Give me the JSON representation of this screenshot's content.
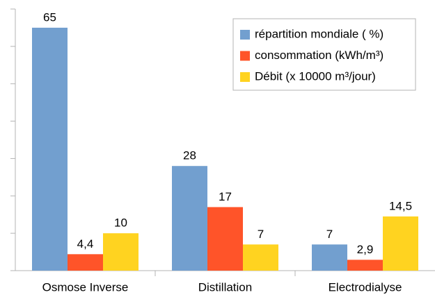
{
  "chart_data": {
    "type": "bar",
    "categories": [
      "Osmose Inverse",
      "Distillation",
      "Electrodialyse"
    ],
    "series": [
      {
        "name": "répartition mondiale ( %)",
        "color": "#729fcf",
        "values": [
          65,
          28,
          7
        ],
        "value_labels": [
          "65",
          "28",
          "7"
        ]
      },
      {
        "name": "consommation (kWh/m³)",
        "color": "#ff5429",
        "values": [
          4.4,
          17,
          2.9
        ],
        "value_labels": [
          "4,4",
          "17",
          "2,9"
        ]
      },
      {
        "name": "Débit (x 10000 m³/jour)",
        "color": "#ffd320",
        "values": [
          10,
          7,
          14.5
        ],
        "value_labels": [
          "10",
          "7",
          "14,5"
        ]
      }
    ],
    "ylim": [
      0,
      70
    ],
    "yticks": [
      0,
      10,
      20,
      30,
      40,
      50,
      60,
      70
    ],
    "legend": "upper right"
  }
}
